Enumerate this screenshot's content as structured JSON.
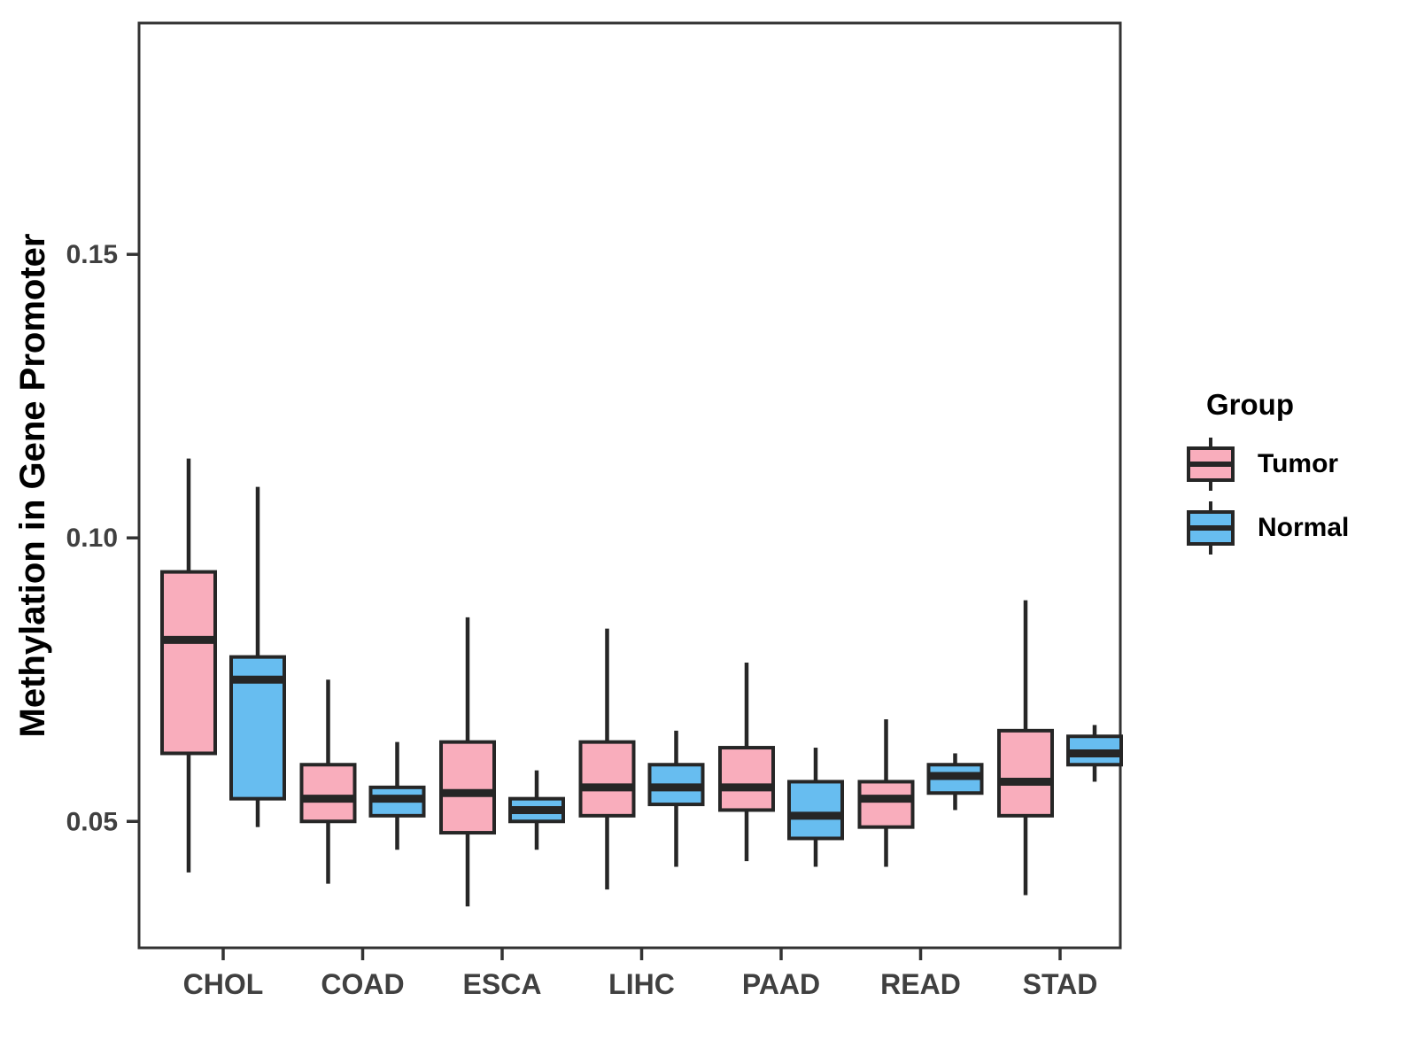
{
  "page": {
    "background": "#FFFFFF"
  },
  "chart_data": {
    "type": "boxplot",
    "title": "",
    "xlabel": "",
    "ylabel": "Methylation in Gene Promoter",
    "categories": [
      "CHOL",
      "COAD",
      "ESCA",
      "LIHC",
      "PAAD",
      "READ",
      "STAD"
    ],
    "legend": {
      "title": "Group",
      "position": "right",
      "entries": [
        "Tumor",
        "Normal"
      ]
    },
    "yticks": {
      "values": [
        0.05,
        0.1,
        0.15
      ],
      "labels": [
        "0.05",
        "0.10",
        "0.15"
      ]
    },
    "ylim": [
      0.0277,
      0.1908
    ],
    "grid": false,
    "colors": {
      "tumor_fill": "#F9ADBC",
      "normal_fill": "#67BDF0",
      "box_outline": "#262626",
      "panel_border": "#333333",
      "tick_label": "#404040",
      "axis_title": "#000000"
    },
    "series": [
      {
        "name": "Tumor",
        "fill": "#F9ADBC",
        "boxes": [
          {
            "category": "CHOL",
            "whisker_low": 0.041,
            "q1": 0.062,
            "median": 0.082,
            "q3": 0.094,
            "whisker_high": 0.114
          },
          {
            "category": "COAD",
            "whisker_low": 0.039,
            "q1": 0.05,
            "median": 0.054,
            "q3": 0.06,
            "whisker_high": 0.075
          },
          {
            "category": "ESCA",
            "whisker_low": 0.035,
            "q1": 0.048,
            "median": 0.055,
            "q3": 0.064,
            "whisker_high": 0.086
          },
          {
            "category": "LIHC",
            "whisker_low": 0.038,
            "q1": 0.051,
            "median": 0.056,
            "q3": 0.064,
            "whisker_high": 0.084
          },
          {
            "category": "PAAD",
            "whisker_low": 0.043,
            "q1": 0.052,
            "median": 0.056,
            "q3": 0.063,
            "whisker_high": 0.078
          },
          {
            "category": "READ",
            "whisker_low": 0.042,
            "q1": 0.049,
            "median": 0.054,
            "q3": 0.057,
            "whisker_high": 0.068
          },
          {
            "category": "STAD",
            "whisker_low": 0.037,
            "q1": 0.051,
            "median": 0.057,
            "q3": 0.066,
            "whisker_high": 0.089
          }
        ]
      },
      {
        "name": "Normal",
        "fill": "#67BDF0",
        "boxes": [
          {
            "category": "CHOL",
            "whisker_low": 0.049,
            "q1": 0.054,
            "median": 0.075,
            "q3": 0.079,
            "whisker_high": 0.109
          },
          {
            "category": "COAD",
            "whisker_low": 0.045,
            "q1": 0.051,
            "median": 0.054,
            "q3": 0.056,
            "whisker_high": 0.064
          },
          {
            "category": "ESCA",
            "whisker_low": 0.045,
            "q1": 0.05,
            "median": 0.052,
            "q3": 0.054,
            "whisker_high": 0.059
          },
          {
            "category": "LIHC",
            "whisker_low": 0.042,
            "q1": 0.053,
            "median": 0.056,
            "q3": 0.06,
            "whisker_high": 0.066
          },
          {
            "category": "PAAD",
            "whisker_low": 0.042,
            "q1": 0.047,
            "median": 0.051,
            "q3": 0.057,
            "whisker_high": 0.063
          },
          {
            "category": "READ",
            "whisker_low": 0.052,
            "q1": 0.055,
            "median": 0.058,
            "q3": 0.06,
            "whisker_high": 0.062
          },
          {
            "category": "STAD",
            "whisker_low": 0.057,
            "q1": 0.06,
            "median": 0.062,
            "q3": 0.065,
            "whisker_high": 0.067
          }
        ]
      }
    ]
  }
}
